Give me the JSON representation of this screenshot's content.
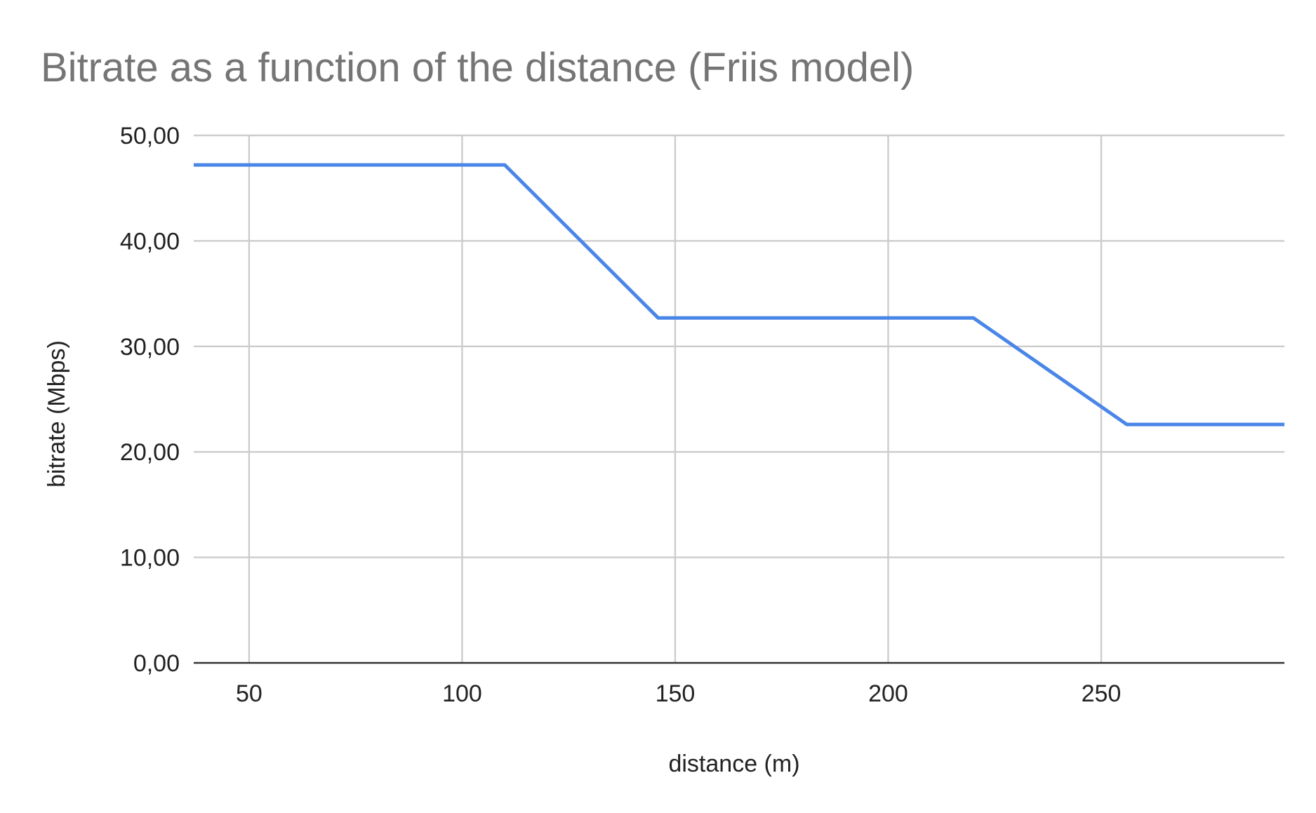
{
  "chart_data": {
    "type": "line",
    "title": "Bitrate as a function of the distance (Friis model)",
    "xlabel": "distance (m)",
    "ylabel": "bitrate (Mbps)",
    "xlim": [
      37,
      293
    ],
    "ylim": [
      0,
      50
    ],
    "x_ticks": [
      {
        "value": 50,
        "label": "50"
      },
      {
        "value": 100,
        "label": "100"
      },
      {
        "value": 150,
        "label": "150"
      },
      {
        "value": 200,
        "label": "200"
      },
      {
        "value": 250,
        "label": "250"
      }
    ],
    "y_ticks": [
      {
        "value": 0,
        "label": "0,00"
      },
      {
        "value": 10,
        "label": "10,00"
      },
      {
        "value": 20,
        "label": "20,00"
      },
      {
        "value": 30,
        "label": "30,00"
      },
      {
        "value": 40,
        "label": "40,00"
      },
      {
        "value": 50,
        "label": "50,00"
      }
    ],
    "grid": true,
    "legend": "none",
    "series": [
      {
        "color": "#4a86e8",
        "points": [
          {
            "x": 37,
            "y": 47.2
          },
          {
            "x": 110,
            "y": 47.2
          },
          {
            "x": 146,
            "y": 32.7
          },
          {
            "x": 220,
            "y": 32.7
          },
          {
            "x": 256,
            "y": 22.6
          },
          {
            "x": 293,
            "y": 22.6
          }
        ]
      }
    ]
  }
}
